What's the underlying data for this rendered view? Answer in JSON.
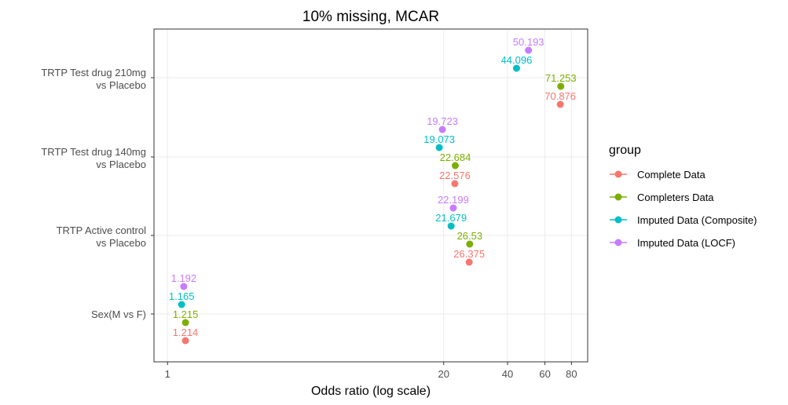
{
  "chart_data": {
    "type": "scatter",
    "title": "10% missing, MCAR",
    "xlabel": "Odds ratio (log scale)",
    "ylabel": "",
    "x_scale": "log",
    "x_ticks": [
      1,
      20,
      40,
      60,
      80
    ],
    "grid": true,
    "legend_placement": "right",
    "legend_title": "group",
    "categories": [
      {
        "line1": "TRTP Test drug 210mg",
        "line2": "vs Placebo"
      },
      {
        "line1": "TRTP Test drug 140mg",
        "line2": "vs Placebo"
      },
      {
        "line1": "TRTP Active control",
        "line2": "vs Placebo"
      },
      {
        "line1": "Sex(M vs F)",
        "line2": ""
      }
    ],
    "series": [
      {
        "name": "Complete Data",
        "color": "#F8766D",
        "values": [
          70.876,
          22.576,
          26.375,
          1.214
        ],
        "labels": [
          "70.876",
          "22.576",
          "26.375",
          "1.214"
        ]
      },
      {
        "name": "Completers Data",
        "color": "#7CAE00",
        "values": [
          71.253,
          22.684,
          26.53,
          1.215
        ],
        "labels": [
          "71.253",
          "22.684",
          "26.53",
          "1.215"
        ]
      },
      {
        "name": "Imputed Data (Composite)",
        "color": "#00BFC4",
        "values": [
          44.096,
          19.073,
          21.679,
          1.165
        ],
        "labels": [
          "44.096",
          "19.073",
          "21.679",
          "1.165"
        ]
      },
      {
        "name": "Imputed Data (LOCF)",
        "color": "#C77CFF",
        "values": [
          50.193,
          19.723,
          22.199,
          1.192
        ],
        "labels": [
          "50.193",
          "19.723",
          "22.199",
          "1.192"
        ]
      }
    ]
  }
}
